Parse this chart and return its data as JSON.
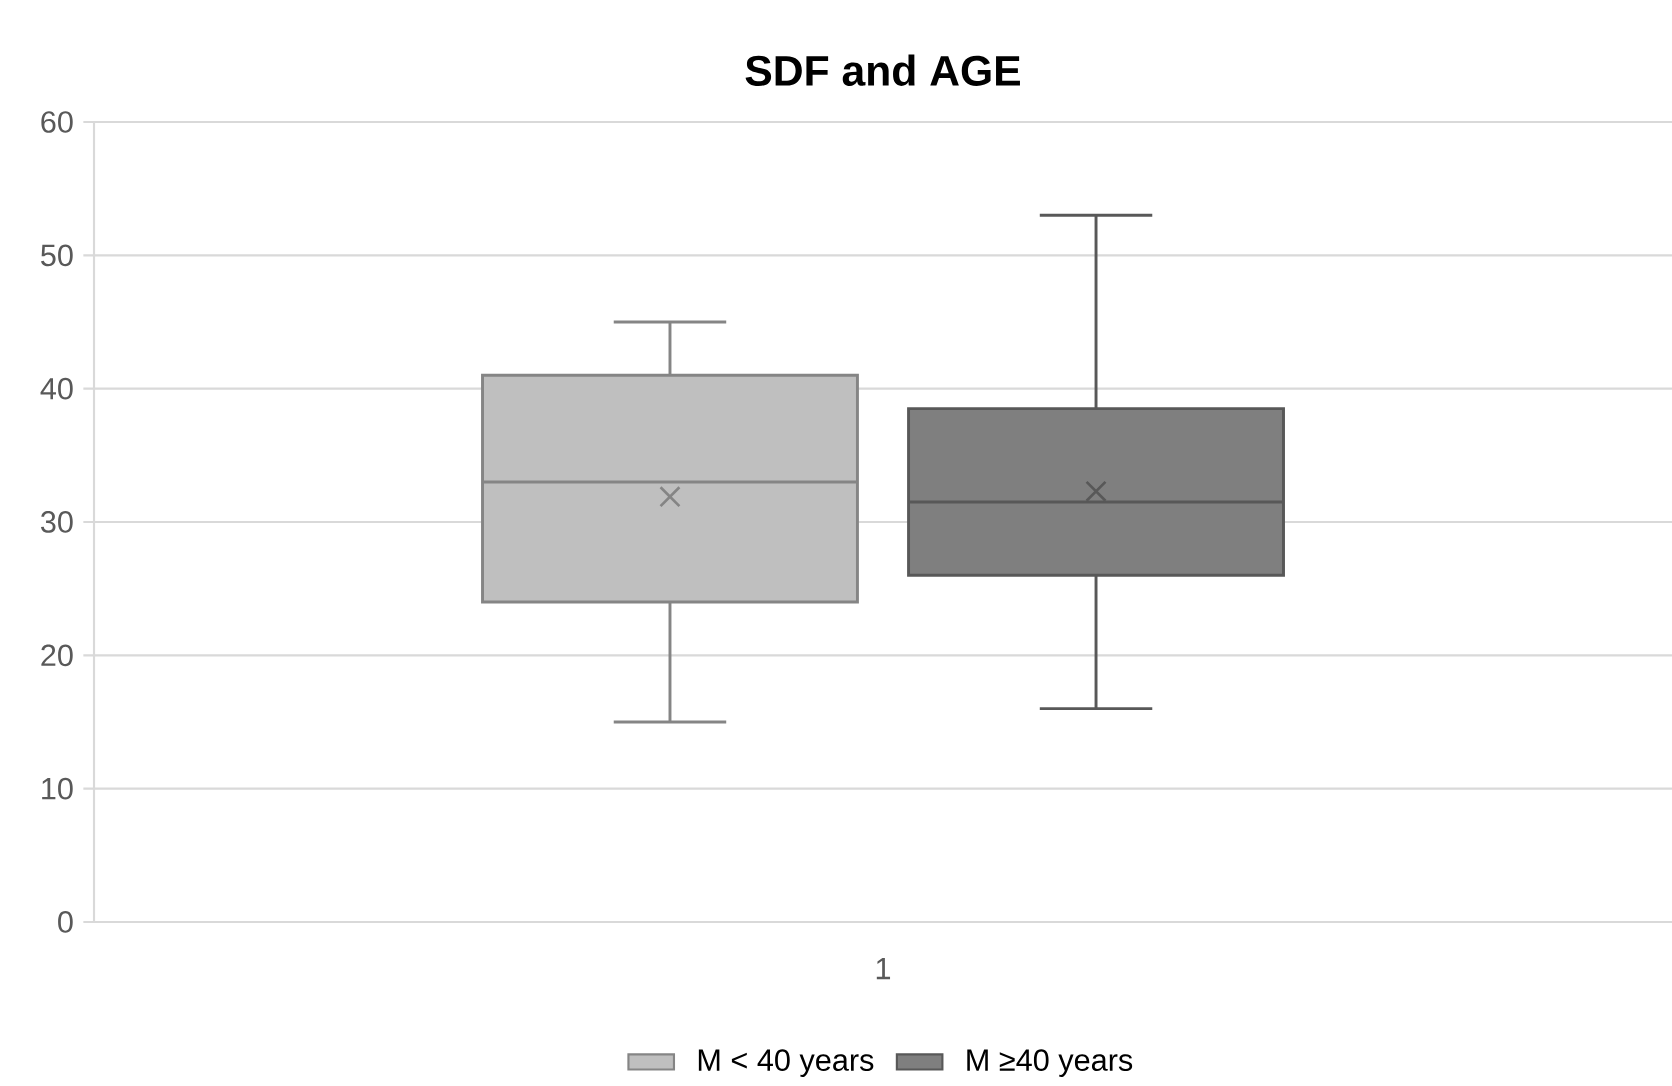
{
  "chart_data": {
    "type": "box",
    "title": "SDF and AGE",
    "categories": [
      "1"
    ],
    "series": [
      {
        "name": "M < 40 years",
        "color": "#bfbfbf",
        "boxes": [
          {
            "low": 15,
            "q1": 24,
            "median": 33,
            "q3": 41,
            "high": 45,
            "mean": 31.9
          }
        ]
      },
      {
        "name": "M ≥40 years",
        "color": "#7f7f7f",
        "boxes": [
          {
            "low": 16,
            "q1": 26,
            "median": 31.5,
            "q3": 38.5,
            "high": 53,
            "mean": 32.3
          }
        ]
      }
    ],
    "ylim": [
      0,
      60
    ],
    "yticks": [
      0,
      10,
      20,
      30,
      40,
      50,
      60
    ],
    "grid": "y",
    "legend": "bottom",
    "marker": "cross"
  }
}
